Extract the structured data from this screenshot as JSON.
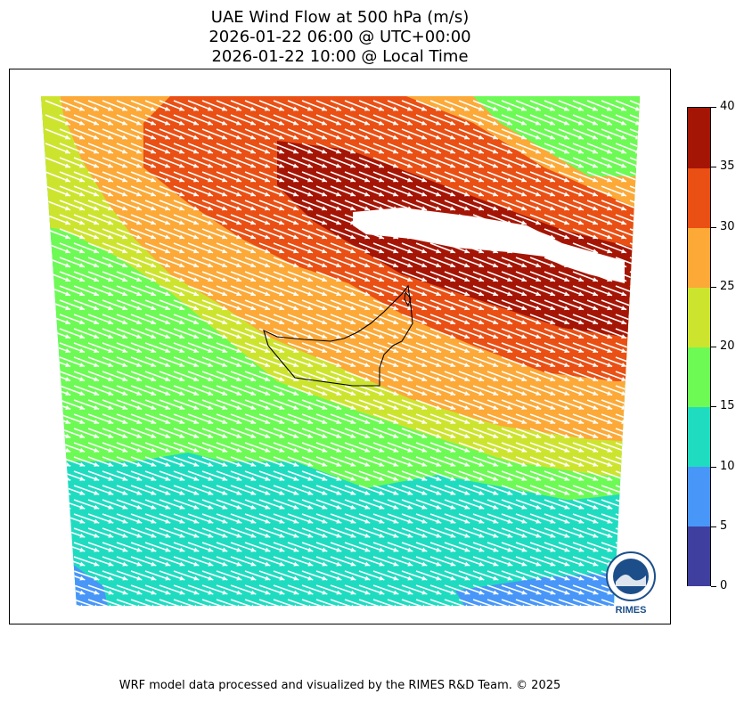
{
  "header": {
    "title": "UAE Wind Flow at 500 hPa (m/s)",
    "utc_time": "2026-01-22 06:00 @ UTC+00:00",
    "local_time": "2026-01-22 10:00 @ Local Time"
  },
  "colorbar": {
    "ticks": [
      "0",
      "5",
      "10",
      "15",
      "20",
      "25",
      "30",
      "35",
      "40"
    ],
    "colors": [
      "#3f3f9f",
      "#4896f8",
      "#1fdcc0",
      "#6dfa55",
      "#cde42f",
      "#fca938",
      "#ea4f14",
      "#a51505"
    ]
  },
  "logo": {
    "text": "RIMES",
    "ring_text": "Regional Integrated Multi-Hazard Early Warning System"
  },
  "footer": {
    "credit": "WRF model data processed and visualized by the RIMES R&D Team. © 2025"
  }
}
